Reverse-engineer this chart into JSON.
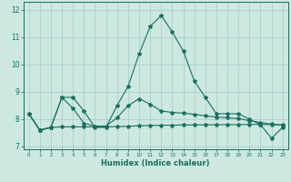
{
  "xlabel": "Humidex (Indice chaleur)",
  "ylabel": "",
  "background_color": "#cce8e0",
  "grid_color": "#aad0c8",
  "line_color": "#1a6e60",
  "xlim": [
    -0.5,
    23.5
  ],
  "ylim": [
    6.9,
    12.3
  ],
  "xticks": [
    0,
    1,
    2,
    3,
    4,
    5,
    6,
    7,
    8,
    9,
    10,
    11,
    12,
    13,
    14,
    15,
    16,
    17,
    18,
    19,
    20,
    21,
    22,
    23
  ],
  "yticks": [
    7,
    8,
    9,
    10,
    11,
    12
  ],
  "line1_x": [
    0,
    1,
    2,
    3,
    4,
    5,
    6,
    7,
    8,
    9,
    10,
    11,
    12,
    13,
    14,
    15,
    16,
    17,
    18,
    19,
    20,
    21,
    22,
    23
  ],
  "line1_y": [
    8.2,
    7.6,
    7.7,
    8.8,
    8.8,
    8.3,
    7.7,
    7.7,
    8.5,
    9.2,
    10.4,
    11.4,
    11.8,
    11.2,
    10.5,
    9.4,
    8.8,
    8.2,
    8.2,
    8.2,
    8.0,
    7.8,
    7.3,
    7.7
  ],
  "line2_x": [
    0,
    1,
    2,
    3,
    4,
    5,
    6,
    7,
    8,
    9,
    10,
    11,
    12,
    13,
    14,
    15,
    16,
    17,
    18,
    19,
    20,
    21,
    22,
    23
  ],
  "line2_y": [
    8.2,
    7.6,
    7.7,
    8.8,
    8.4,
    7.85,
    7.75,
    7.75,
    8.05,
    8.5,
    8.75,
    8.55,
    8.3,
    8.25,
    8.22,
    8.18,
    8.12,
    8.08,
    8.05,
    8.02,
    7.95,
    7.88,
    7.82,
    7.78
  ],
  "line3_x": [
    0,
    1,
    2,
    3,
    4,
    5,
    6,
    7,
    8,
    9,
    10,
    11,
    12,
    13,
    14,
    15,
    16,
    17,
    18,
    19,
    20,
    21,
    22,
    23
  ],
  "line3_y": [
    8.2,
    7.6,
    7.7,
    7.72,
    7.72,
    7.72,
    7.72,
    7.72,
    7.73,
    7.74,
    7.76,
    7.77,
    7.78,
    7.78,
    7.79,
    7.79,
    7.79,
    7.8,
    7.8,
    7.8,
    7.81,
    7.81,
    7.8,
    7.8
  ]
}
